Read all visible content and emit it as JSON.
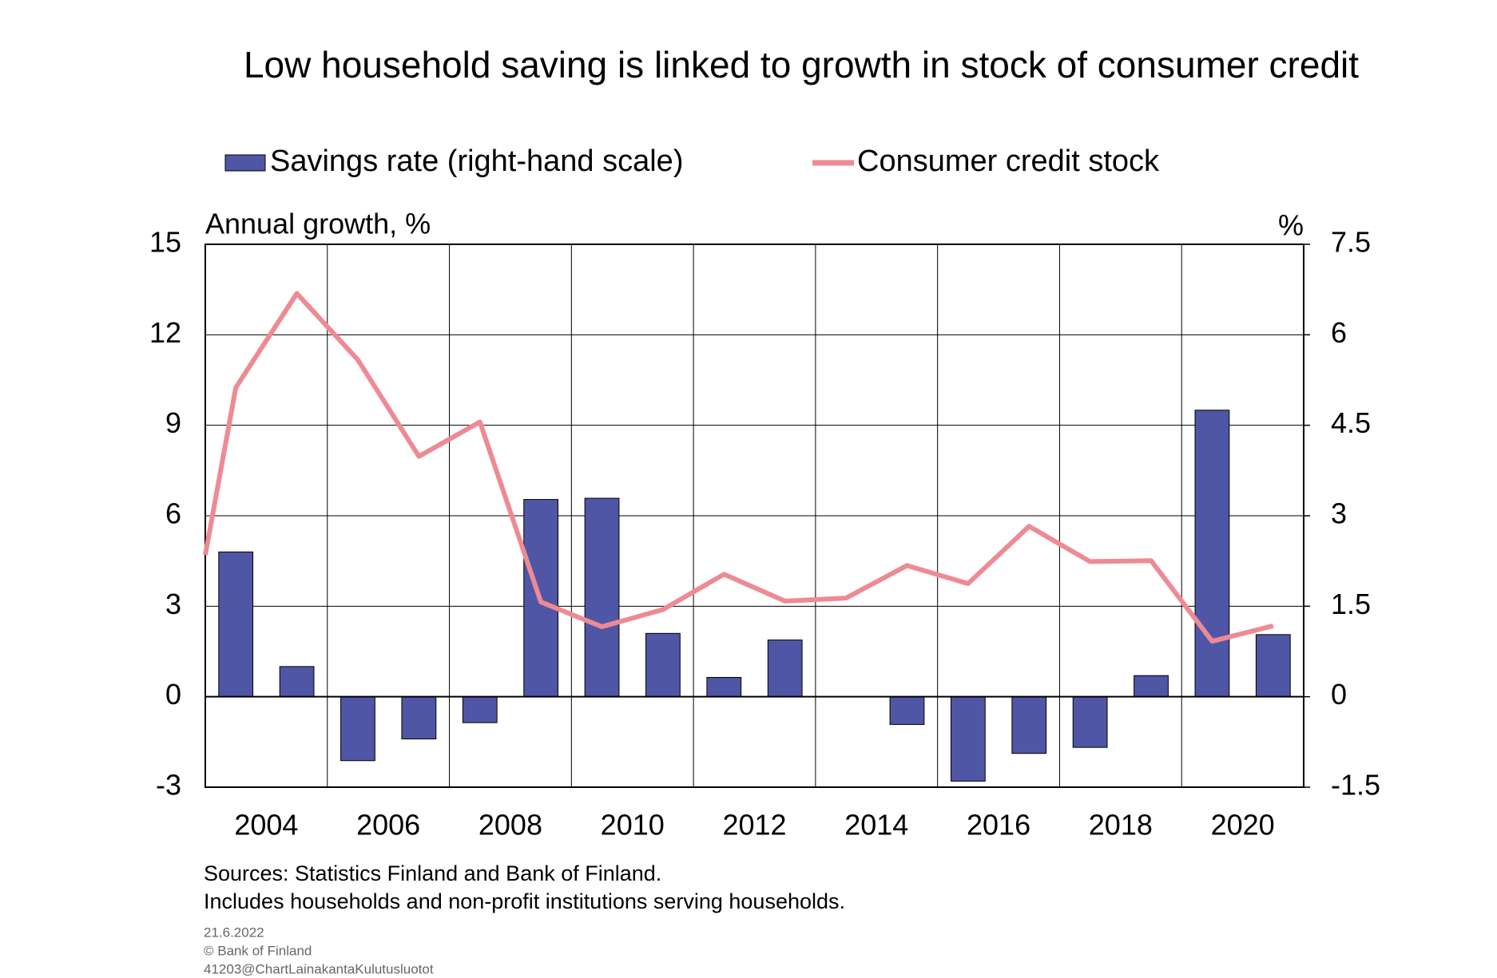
{
  "chart_data": {
    "type": "combo",
    "title": "Low household saving is linked to growth in stock of consumer credit",
    "y_label": "Annual growth, %",
    "y2_label": "%",
    "xlim": [
      2002.5,
      2020.5
    ],
    "xticks": [
      2004,
      2006,
      2008,
      2010,
      2012,
      2014,
      2016,
      2018,
      2020
    ],
    "ylim": [
      -3,
      15
    ],
    "yticks": [
      -3,
      0,
      3,
      6,
      9,
      12,
      15
    ],
    "y2lim": [
      -1.5,
      7.5
    ],
    "y2ticks": [
      -1.5,
      0,
      1.5,
      3,
      4.5,
      6,
      7.5
    ],
    "grid": true,
    "legend": "top",
    "series": [
      {
        "name": "Savings rate (right-hand scale)",
        "type": "bar",
        "axis": "y2",
        "color": "#4f56a6",
        "x": [
          2003,
          2004,
          2005,
          2006,
          2007,
          2008,
          2009,
          2010,
          2011,
          2012,
          2013,
          2014,
          2015,
          2016,
          2017,
          2018,
          2019,
          2020
        ],
        "values": [
          2.4,
          0.5,
          -1.06,
          -0.7,
          -0.43,
          3.27,
          3.29,
          1.05,
          0.32,
          0.94,
          0.0,
          -0.46,
          -1.4,
          -0.94,
          -0.84,
          0.35,
          4.75,
          1.03
        ]
      },
      {
        "name": "Consumer credit stock",
        "type": "line",
        "color": "#ee8a93",
        "x": [
          2002.5,
          2003,
          2004,
          2005,
          2006,
          2007,
          2008,
          2009,
          2010,
          2011,
          2012,
          2013,
          2014,
          2015,
          2016,
          2017,
          2018,
          2019,
          2020
        ],
        "values": [
          4.7,
          10.25,
          13.37,
          11.17,
          7.97,
          9.11,
          3.14,
          2.32,
          2.89,
          4.06,
          3.17,
          3.27,
          4.35,
          3.75,
          5.65,
          4.48,
          4.51,
          1.84,
          2.35
        ]
      }
    ]
  },
  "notes": [
    "Sources: Statistics Finland and Bank of Finland.",
    "Includes households and non-profit institutions serving households."
  ],
  "footer": [
    "21.6.2022",
    "© Bank of Finland",
    "41203@ChartLainakantaKulutusluotot"
  ]
}
